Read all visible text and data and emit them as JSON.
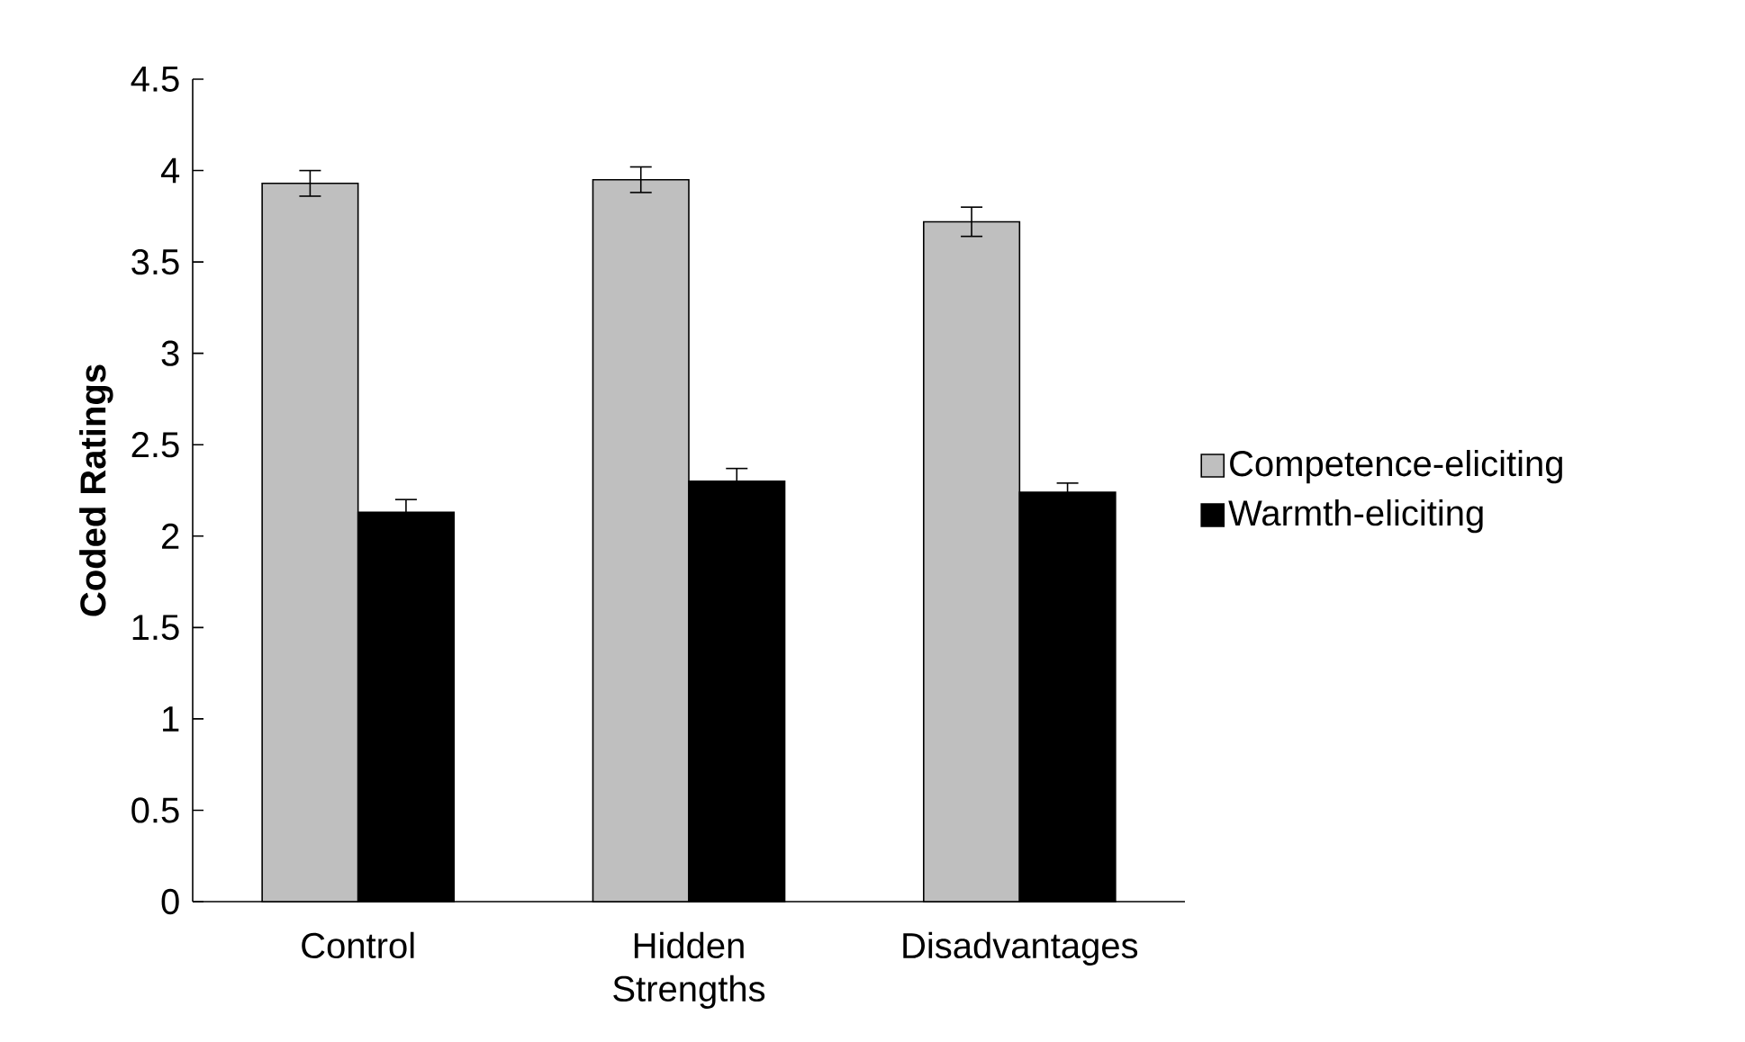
{
  "chart_data": {
    "type": "bar",
    "ylabel": "Coded Ratings",
    "categories": [
      "Control",
      "Hidden Strengths",
      "Disadvantages"
    ],
    "series": [
      {
        "name": "Competence-eliciting",
        "color": "#bfbfbf",
        "values": [
          3.93,
          3.95,
          3.72
        ],
        "errors": [
          0.07,
          0.07,
          0.08
        ]
      },
      {
        "name": "Warmth-eliciting",
        "color": "#000000",
        "values": [
          2.13,
          2.3,
          2.24
        ],
        "errors": [
          0.07,
          0.07,
          0.05
        ]
      }
    ],
    "ylim": [
      0,
      4.5
    ],
    "yticks": [
      0,
      0.5,
      1,
      1.5,
      2,
      2.5,
      3,
      3.5,
      4,
      4.5
    ],
    "legend": "right"
  }
}
